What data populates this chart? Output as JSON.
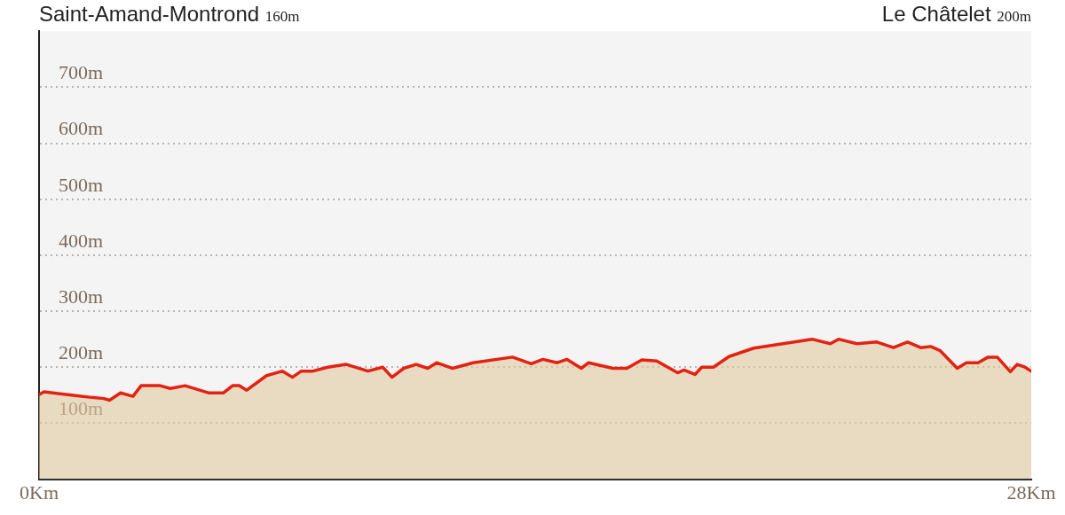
{
  "chart_data": {
    "type": "area",
    "annotations": [
      "Saint-Amand-Montrond 160m",
      "Le Châtelet 200m"
    ],
    "x": [
      0,
      0.14,
      0.54,
      1.08,
      1.48,
      1.83,
      1.99,
      2.3,
      2.65,
      2.88,
      3.42,
      3.7,
      4.12,
      4.8,
      5.2,
      5.46,
      5.65,
      5.86,
      6.42,
      6.87,
      7.15,
      7.4,
      7.73,
      8.15,
      8.67,
      9.28,
      9.7,
      9.96,
      10.29,
      10.64,
      10.97,
      11.22,
      11.67,
      12.25,
      13.36,
      13.89,
      14.22,
      14.62,
      14.9,
      15.3,
      15.51,
      16.19,
      16.59,
      17.01,
      17.43,
      18.02,
      18.2,
      18.51,
      18.7,
      19.03,
      19.47,
      20.17,
      21.81,
      22.33,
      22.56,
      23.08,
      23.64,
      24.11,
      24.51,
      24.88,
      25.16,
      25.42,
      25.91,
      26.17,
      26.5,
      26.78,
      27.04,
      27.41,
      27.6,
      27.79,
      28
    ],
    "series": [
      {
        "color": "#e32212",
        "values": [
          151,
          156,
          153,
          149,
          146,
          144,
          141,
          154,
          148,
          167,
          167,
          162,
          167,
          154,
          154,
          167,
          167,
          159,
          185,
          193,
          182,
          193,
          193,
          200,
          205,
          193,
          200,
          182,
          198,
          205,
          198,
          208,
          198,
          208,
          218,
          206,
          214,
          208,
          214,
          198,
          208,
          198,
          198,
          213,
          211,
          190,
          195,
          187,
          200,
          200,
          219,
          234,
          250,
          242,
          250,
          242,
          245,
          235,
          245,
          235,
          237,
          230,
          198,
          208,
          208,
          218,
          218,
          192,
          205,
          201,
          193
        ]
      }
    ],
    "xlim": [
      0,
      28
    ],
    "xticks": [
      {
        "value": 0,
        "label": "0Km"
      },
      {
        "value": 28,
        "label": "28Km"
      }
    ],
    "ylim": [
      0,
      800
    ],
    "yticks": [
      {
        "value": 100,
        "label": "100m"
      },
      {
        "value": 200,
        "label": "200m"
      },
      {
        "value": 300,
        "label": "300m"
      },
      {
        "value": 400,
        "label": "400m"
      },
      {
        "value": 500,
        "label": "500m"
      },
      {
        "value": 600,
        "label": "600m"
      },
      {
        "value": 700,
        "label": "700m"
      }
    ],
    "grid": "y",
    "legend": false,
    "marker": "none",
    "line_style": "solid"
  }
}
